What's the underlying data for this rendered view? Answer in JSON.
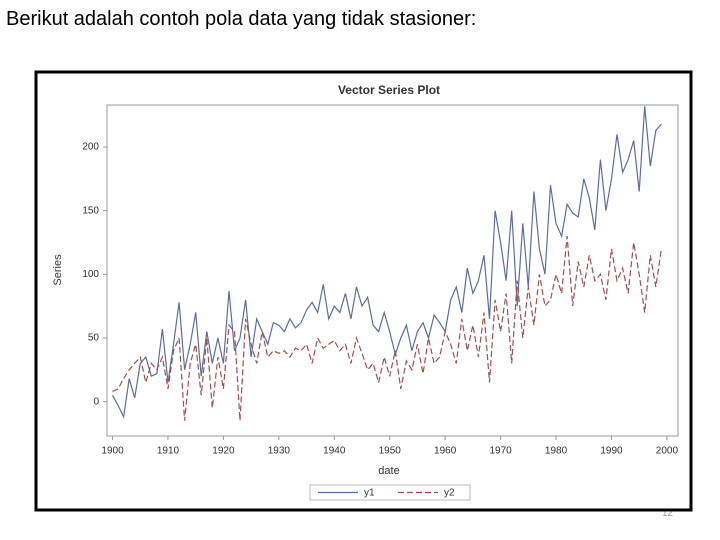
{
  "slide": {
    "heading": "Berikut adalah contoh pola data yang tidak stasioner:",
    "page_number": "12"
  },
  "chart_data": {
    "type": "line",
    "title": "Vector Series Plot",
    "x_label": "date",
    "y_label": "Series",
    "x": [
      1900,
      1901,
      1902,
      1903,
      1904,
      1905,
      1906,
      1907,
      1908,
      1909,
      1910,
      1911,
      1912,
      1913,
      1914,
      1915,
      1916,
      1917,
      1918,
      1919,
      1920,
      1921,
      1922,
      1923,
      1924,
      1925,
      1926,
      1927,
      1928,
      1929,
      1930,
      1931,
      1932,
      1933,
      1934,
      1935,
      1936,
      1937,
      1938,
      1939,
      1940,
      1941,
      1942,
      1943,
      1944,
      1945,
      1946,
      1947,
      1948,
      1949,
      1950,
      1951,
      1952,
      1953,
      1954,
      1955,
      1956,
      1957,
      1958,
      1959,
      1960,
      1961,
      1962,
      1963,
      1964,
      1965,
      1966,
      1967,
      1968,
      1969,
      1970,
      1971,
      1972,
      1973,
      1974,
      1975,
      1976,
      1977,
      1978,
      1979,
      1980,
      1981,
      1982,
      1983,
      1984,
      1985,
      1986,
      1987,
      1988,
      1989,
      1990,
      1991,
      1992,
      1993,
      1994,
      1995,
      1996,
      1997,
      1998,
      1999
    ],
    "series": [
      {
        "name": "y1",
        "color": "#5a6fa0",
        "dash": "solid",
        "values": [
          5,
          -3,
          -12,
          18,
          3,
          30,
          35,
          20,
          22,
          57,
          15,
          45,
          78,
          25,
          45,
          70,
          20,
          55,
          30,
          50,
          30,
          87,
          40,
          50,
          80,
          35,
          65,
          55,
          45,
          62,
          60,
          55,
          65,
          58,
          62,
          72,
          78,
          70,
          92,
          65,
          75,
          70,
          85,
          65,
          90,
          75,
          82,
          60,
          55,
          70,
          55,
          37,
          50,
          60,
          40,
          55,
          62,
          50,
          68,
          62,
          55,
          80,
          90,
          70,
          105,
          85,
          95,
          115,
          65,
          150,
          125,
          95,
          150,
          75,
          140,
          90,
          165,
          120,
          100,
          170,
          140,
          130,
          155,
          148,
          145,
          175,
          160,
          135,
          190,
          150,
          175,
          210,
          180,
          190,
          205,
          165,
          232,
          185,
          213,
          218
        ]
      },
      {
        "name": "y2",
        "color": "#a0504f",
        "dash": "dashed",
        "values": [
          8,
          10,
          18,
          25,
          30,
          35,
          15,
          30,
          25,
          35,
          10,
          40,
          50,
          -15,
          30,
          45,
          5,
          50,
          -5,
          35,
          10,
          60,
          55,
          -15,
          65,
          45,
          30,
          55,
          35,
          40,
          38,
          40,
          35,
          42,
          40,
          45,
          30,
          50,
          42,
          45,
          48,
          40,
          45,
          30,
          50,
          38,
          25,
          30,
          15,
          35,
          20,
          40,
          10,
          32,
          25,
          45,
          22,
          50,
          30,
          35,
          55,
          45,
          30,
          65,
          40,
          60,
          35,
          70,
          15,
          80,
          55,
          85,
          30,
          95,
          50,
          90,
          60,
          100,
          75,
          80,
          100,
          85,
          130,
          75,
          110,
          90,
          115,
          95,
          100,
          80,
          120,
          95,
          105,
          85,
          125,
          100,
          70,
          115,
          90,
          120
        ]
      }
    ],
    "xlim": [
      1899,
      2002
    ],
    "ylim": [
      -27,
      233
    ],
    "xticks": [
      1900,
      1910,
      1920,
      1930,
      1940,
      1950,
      1960,
      1970,
      1980,
      1990,
      2000
    ],
    "yticks": [
      0,
      50,
      100,
      150,
      200
    ],
    "grid": false,
    "legend": "bottom"
  }
}
